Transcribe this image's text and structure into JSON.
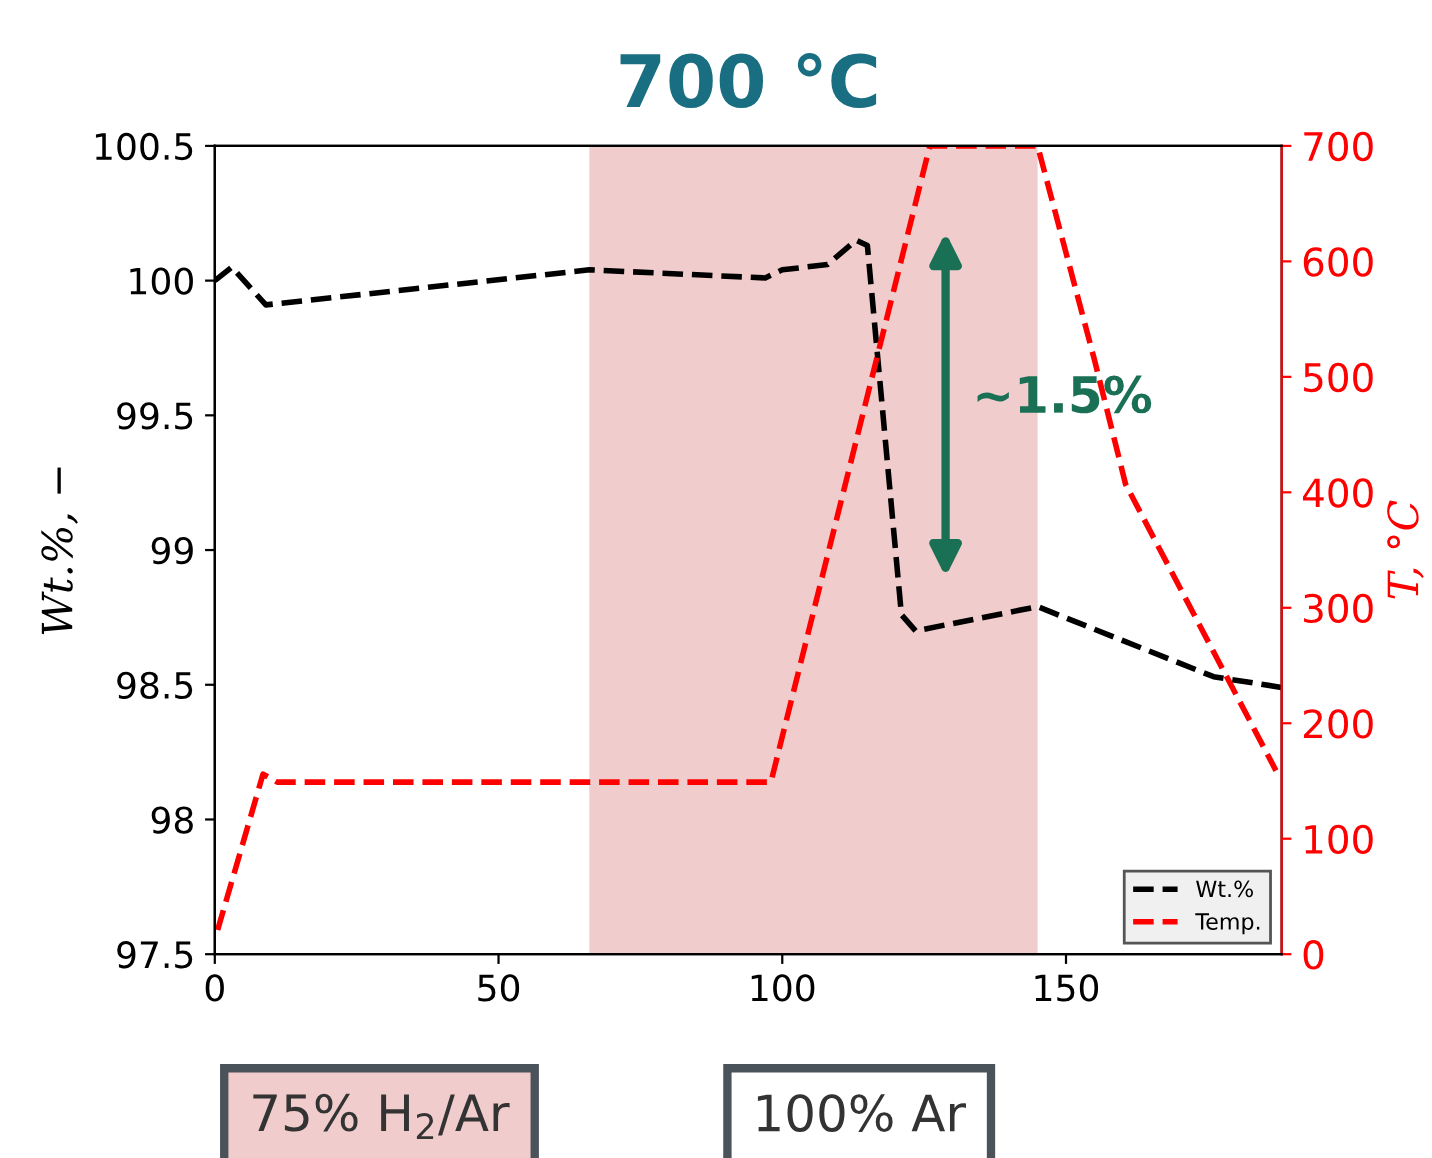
{
  "chart_data": {
    "type": "line",
    "title": "700 °C",
    "ylabel": "Wt.%, −",
    "y2label": "T, °C",
    "xlim": [
      0,
      188
    ],
    "xticks": [
      0,
      50,
      100,
      150
    ],
    "ylim": [
      97.5,
      100.5
    ],
    "yticks": [
      97.5,
      98,
      98.5,
      99,
      99.5,
      100,
      100.5
    ],
    "y2lim": [
      0,
      700
    ],
    "y2ticks": [
      0,
      100,
      200,
      300,
      400,
      500,
      600,
      700
    ],
    "line_style": "dashed",
    "legend": "bottom right",
    "grid": false,
    "bands": [
      {
        "axis": "x",
        "from": 66,
        "to": 145,
        "color": "#f0cccc"
      }
    ],
    "annotations": [
      "~1.5%",
      "75% H$_{2}$/Ar",
      "100% Ar"
    ],
    "series": [
      {
        "name": "Wt.%",
        "color": "#000000",
        "x": [
          0,
          3,
          9,
          66,
          97,
          100,
          108,
          113,
          115,
          121,
          123.5,
          145,
          176,
          188
        ],
        "values": [
          100.0,
          100.05,
          99.91,
          100.04,
          100.01,
          100.04,
          100.06,
          100.15,
          100.13,
          98.76,
          98.7,
          98.79,
          98.53,
          98.49
        ]
      },
      {
        "name": "Temp.",
        "color": "#ff0000",
        "axis": "y2",
        "x": [
          0.5,
          8.5,
          11,
          98,
          126,
          145,
          155,
          160.5,
          187
        ],
        "values": [
          21,
          156,
          149,
          149,
          700,
          700,
          515,
          407,
          159
        ]
      }
    ]
  }
}
